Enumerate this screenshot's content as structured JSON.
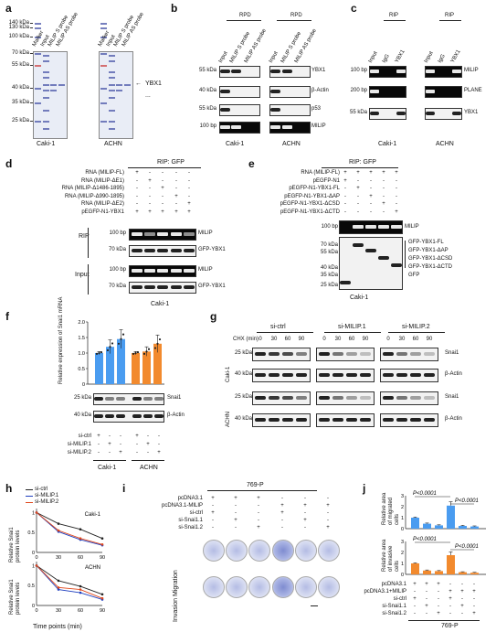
{
  "panels": {
    "a": "a",
    "b": "b",
    "c": "c",
    "d": "d",
    "e": "e",
    "f": "f",
    "g": "g",
    "h": "h",
    "i": "i",
    "j": "j"
  },
  "a": {
    "markers": [
      "140 kDa",
      "130 kDa",
      "100 kDa",
      "70 kDa",
      "55 kDa",
      "40 kDa",
      "35 kDa",
      "25 kDa"
    ],
    "lanes": [
      "Marker",
      "Input",
      "MILIP S probe",
      "MILIP AS probe"
    ],
    "cells": [
      "Caki-1",
      "ACHN"
    ],
    "arrow_label": "YBX1",
    "dots": "..."
  },
  "b": {
    "group": "RPD",
    "lanes": [
      "Input",
      "MILIP S probe",
      "MILIP AS probe"
    ],
    "rows": [
      {
        "size": "55 kDa",
        "label": "YBX1"
      },
      {
        "size": "40 kDa",
        "label": "β-Actin"
      },
      {
        "size": "55 kDa",
        "label": "p53"
      },
      {
        "size": "100 bp",
        "label": "MILIP"
      }
    ],
    "cells": [
      "Caki-1",
      "ACHN"
    ]
  },
  "c": {
    "group": "RIP",
    "lanes": [
      "Input",
      "IgG",
      "YBX1"
    ],
    "rows": [
      {
        "size": "100 bp",
        "label": "MILIP"
      },
      {
        "size": "200 bp",
        "label": "PLANE"
      },
      {
        "size": "55 kDa",
        "label": "YBX1"
      }
    ],
    "cells": [
      "Caki-1",
      "ACHN"
    ]
  },
  "d": {
    "title": "RIP: GFP",
    "conditions": [
      {
        "label": "RNA (MILIP-FL)",
        "v": [
          "+",
          "-",
          "-",
          "-",
          "-"
        ]
      },
      {
        "label": "RNA (MILIP-ΔE1)",
        "v": [
          "-",
          "+",
          "-",
          "-",
          "-"
        ]
      },
      {
        "label": "RNA (MILIP-Δ1486-1895)",
        "v": [
          "-",
          "-",
          "+",
          "-",
          "-"
        ]
      },
      {
        "label": "RNA (MILIP-Δ990-1895)",
        "v": [
          "-",
          "-",
          "-",
          "+",
          "-"
        ]
      },
      {
        "label": "RNA (MILIP-ΔE2)",
        "v": [
          "-",
          "-",
          "-",
          "-",
          "+"
        ]
      },
      {
        "label": "pEGFP-N1-YBX1",
        "v": [
          "+",
          "+",
          "+",
          "+",
          "+"
        ]
      }
    ],
    "rip": "RIP",
    "input": "Input",
    "rows": [
      {
        "size": "100 bp",
        "label": "MILIP"
      },
      {
        "size": "70 kDa",
        "label": "GFP-YBX1"
      },
      {
        "size": "100 bp",
        "label": "MILIP"
      },
      {
        "size": "70 kDa",
        "label": "GFP-YBX1"
      }
    ],
    "cell": "Caki-1"
  },
  "e": {
    "title": "RIP: GFP",
    "conditions": [
      {
        "label": "RNA (MILIP-FL)",
        "v": [
          "+",
          "+",
          "+",
          "+",
          "+"
        ]
      },
      {
        "label": "pEGFP-N1",
        "v": [
          "+",
          "-",
          "-",
          "-",
          "-"
        ]
      },
      {
        "label": "pEGFP-N1-YBX1-FL",
        "v": [
          "-",
          "+",
          "-",
          "-",
          "-"
        ]
      },
      {
        "label": "pEGFP-N1-YBX1-ΔAP",
        "v": [
          "-",
          "-",
          "+",
          "-",
          "-"
        ]
      },
      {
        "label": "pEGFP-N1-YBX1-ΔCSD",
        "v": [
          "-",
          "-",
          "-",
          "+",
          "-"
        ]
      },
      {
        "label": "pEGFP-N1-YBX1-ΔCTD",
        "v": [
          "-",
          "-",
          "-",
          "-",
          "+"
        ]
      }
    ],
    "top_size": "100 bp",
    "top_label": "MILIP",
    "sizes": [
      "70 kDa",
      "55 kDa",
      "40 kDa",
      "35 kDa",
      "25 kDa"
    ],
    "labels": [
      "GFP-YBX1-FL",
      "GFP-YBX1-ΔAP",
      "GFP-YBX1-ΔCSD",
      "GFP-YBX1-ΔCTD",
      "GFP"
    ],
    "cell": "Caki-1"
  },
  "f": {
    "ylabel": "Relative expression of Snai1 mRNA",
    "yticks": [
      "0",
      "0.5",
      "1.0",
      "1.5",
      "2.0"
    ],
    "row_sizes": [
      "25 kDa",
      "40 kDa"
    ],
    "row_labels": [
      "Snai1",
      "β-Actin"
    ],
    "conditions": [
      {
        "label": "si-ctrl",
        "v": [
          "+",
          "-",
          "-",
          "+",
          "-",
          "-"
        ]
      },
      {
        "label": "si-MILIP.1",
        "v": [
          "-",
          "+",
          "-",
          "-",
          "+",
          "-"
        ]
      },
      {
        "label": "si-MILIP.2",
        "v": [
          "-",
          "-",
          "+",
          "-",
          "-",
          "+"
        ]
      }
    ],
    "cells": [
      "Caki-1",
      "ACHN"
    ]
  },
  "g": {
    "chx": "CHX (min)",
    "groups": [
      "si-ctrl",
      "si-MILIP.1",
      "si-MILIP.2"
    ],
    "times": [
      "0",
      "30",
      "60",
      "90"
    ],
    "rows": [
      {
        "size": "25 kDa",
        "label": "Snai1"
      },
      {
        "size": "40 kDa",
        "label": "β-Actin"
      },
      {
        "size": "25 kDa",
        "label": "Snai1"
      },
      {
        "size": "40 kDa",
        "label": "β-Actin"
      }
    ],
    "cells": [
      "Caki-1",
      "ACHN"
    ]
  },
  "h": {
    "legend": [
      "si-ctrl",
      "si-MILIP.1",
      "si-MILIP.2"
    ],
    "legend_colors": [
      "#222222",
      "#1f3fbf",
      "#e0481c"
    ],
    "ylabel": "Relative Snai1 protein levels",
    "yticks": [
      "0",
      "0.5",
      "1"
    ],
    "xticks": [
      "0",
      "30",
      "60",
      "90"
    ],
    "xlabel": "Time points (min)",
    "titles": [
      "Caki-1",
      "ACHN"
    ]
  },
  "i": {
    "cell": "769-P",
    "conditions": [
      {
        "label": "pcDNA3.1",
        "v": [
          "+",
          "+",
          "+",
          "-",
          "-",
          "-"
        ]
      },
      {
        "label": "pcDNA3.1-MILIP",
        "v": [
          "-",
          "-",
          "-",
          "+",
          "+",
          "+"
        ]
      },
      {
        "label": "si-ctrl",
        "v": [
          "+",
          "-",
          "-",
          "+",
          "-",
          "-"
        ]
      },
      {
        "label": "si-Snai1.1",
        "v": [
          "-",
          "+",
          "-",
          "-",
          "+",
          "-"
        ]
      },
      {
        "label": "si-Snai1.2",
        "v": [
          "-",
          "-",
          "+",
          "-",
          "-",
          "+"
        ]
      }
    ],
    "row_labels": [
      "Invasion",
      "Migration"
    ]
  },
  "j": {
    "ylabel_top": "Relative area of migrated cells",
    "ylabel_bottom": "Relative area of invasive cells",
    "yticks_top": [
      "0",
      "1",
      "2",
      "3"
    ],
    "yticks_bottom": [
      "0",
      "1",
      "2",
      "3"
    ],
    "pvals": [
      "P<0.0001",
      "P<0.0001",
      "P<0.0001",
      "P<0.0001"
    ],
    "conditions": [
      {
        "label": "pcDNA3.1",
        "v": [
          "+",
          "+",
          "+",
          "-",
          "-",
          "-"
        ]
      },
      {
        "label": "pcDNA3.1+MILIP",
        "v": [
          "-",
          "-",
          "-",
          "+",
          "+",
          "+"
        ]
      },
      {
        "label": "si-ctrl",
        "v": [
          "+",
          "-",
          "-",
          "+",
          "-",
          "-"
        ]
      },
      {
        "label": "si-Snai1.1",
        "v": [
          "-",
          "+",
          "-",
          "-",
          "+",
          "-"
        ]
      },
      {
        "label": "si-Snai1.2",
        "v": [
          "-",
          "-",
          "+",
          "-",
          "-",
          "+"
        ]
      }
    ],
    "cell": "769-P"
  },
  "chart_data": [
    {
      "type": "bar",
      "panel": "f",
      "categories": [
        "Caki-1 si-ctrl",
        "Caki-1 si-MILIP.1",
        "Caki-1 si-MILIP.2",
        "ACHN si-ctrl",
        "ACHN si-MILIP.1",
        "ACHN si-MILIP.2"
      ],
      "values": [
        1.0,
        1.2,
        1.45,
        1.0,
        1.05,
        1.3
      ],
      "errors": [
        0.05,
        0.22,
        0.3,
        0.05,
        0.15,
        0.28
      ],
      "colors": [
        "#4a9cf0",
        "#4a9cf0",
        "#4a9cf0",
        "#f28a2e",
        "#f28a2e",
        "#f28a2e"
      ],
      "ylim": [
        0,
        2.0
      ]
    },
    {
      "type": "line",
      "panel": "h-caki",
      "x": [
        0,
        30,
        60,
        90
      ],
      "ylim": [
        0,
        1.1
      ],
      "series": [
        {
          "name": "si-ctrl",
          "values": [
            1.0,
            0.72,
            0.58,
            0.35
          ]
        },
        {
          "name": "si-MILIP.1",
          "values": [
            1.0,
            0.52,
            0.32,
            0.18
          ]
        },
        {
          "name": "si-MILIP.2",
          "values": [
            1.0,
            0.55,
            0.35,
            0.2
          ]
        }
      ]
    },
    {
      "type": "line",
      "panel": "h-achn",
      "x": [
        0,
        30,
        60,
        90
      ],
      "ylim": [
        0,
        1.1
      ],
      "series": [
        {
          "name": "si-ctrl",
          "values": [
            1.0,
            0.62,
            0.48,
            0.28
          ]
        },
        {
          "name": "si-MILIP.1",
          "values": [
            1.0,
            0.4,
            0.32,
            0.15
          ]
        },
        {
          "name": "si-MILIP.2",
          "values": [
            1.0,
            0.45,
            0.4,
            0.18
          ]
        }
      ]
    },
    {
      "type": "bar",
      "panel": "j-migrated",
      "values": [
        1.0,
        0.45,
        0.3,
        2.1,
        0.25,
        0.2
      ],
      "errors": [
        0.06,
        0.06,
        0.05,
        0.35,
        0.05,
        0.05
      ],
      "color": "#4a9cf0",
      "ylim": [
        0,
        3
      ]
    },
    {
      "type": "bar",
      "panel": "j-invasive",
      "values": [
        1.0,
        0.35,
        0.3,
        1.75,
        0.2,
        0.15
      ],
      "errors": [
        0.05,
        0.05,
        0.05,
        0.3,
        0.04,
        0.04
      ],
      "color": "#f28a2e",
      "ylim": [
        0,
        3
      ]
    }
  ]
}
